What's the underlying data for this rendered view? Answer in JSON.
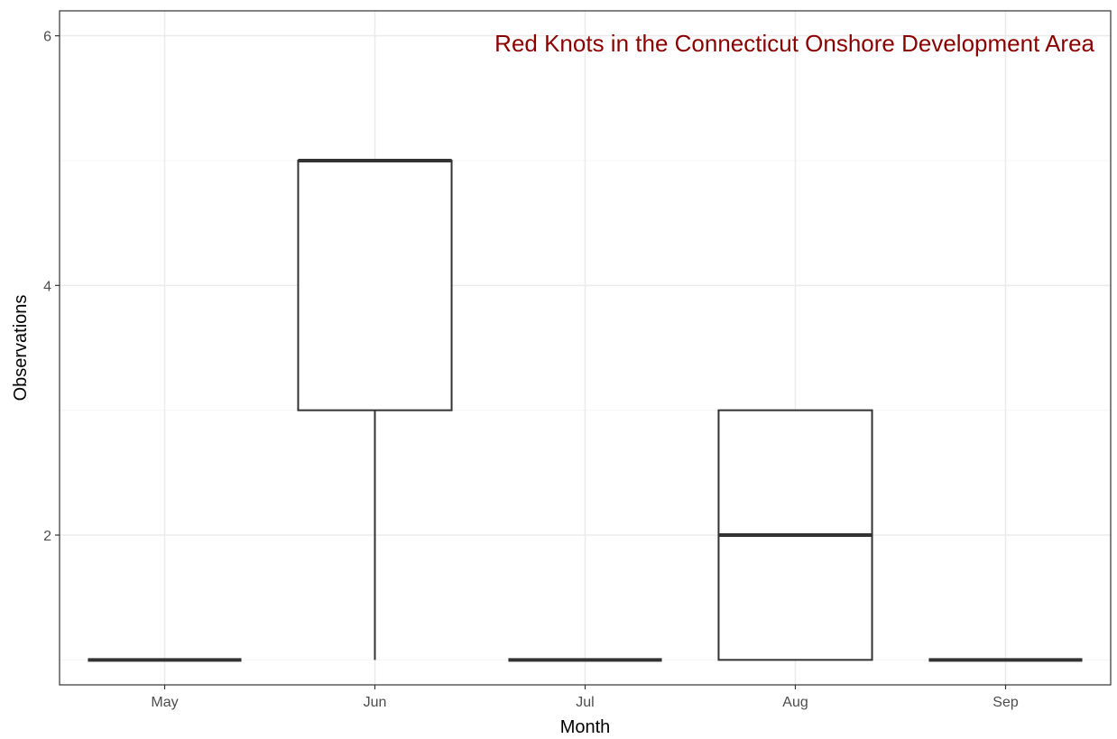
{
  "chart_data": {
    "type": "box",
    "title": "Red Knots in the Connecticut Onshore Development Area",
    "xlabel": "Month",
    "ylabel": "Observations",
    "categories": [
      "May",
      "Jun",
      "Jul",
      "Aug",
      "Sep"
    ],
    "boxes": [
      {
        "category": "May",
        "min": 1,
        "q1": 1,
        "median": 1,
        "q3": 1,
        "max": 1
      },
      {
        "category": "Jun",
        "min": 1,
        "q1": 3,
        "median": 5,
        "q3": 5,
        "max": 5
      },
      {
        "category": "Jul",
        "min": 1,
        "q1": 1,
        "median": 1,
        "q3": 1,
        "max": 1
      },
      {
        "category": "Aug",
        "min": 1,
        "q1": 1,
        "median": 2,
        "q3": 3,
        "max": 3
      },
      {
        "category": "Sep",
        "min": 1,
        "q1": 1,
        "median": 1,
        "q3": 1,
        "max": 1
      }
    ],
    "yticks": [
      "2",
      "4",
      "6"
    ],
    "ylim": [
      0.8,
      6.2
    ],
    "grid": true,
    "title_color": "#8b0000",
    "title_placement": "top-right",
    "box_stroke_color": "#333333"
  }
}
